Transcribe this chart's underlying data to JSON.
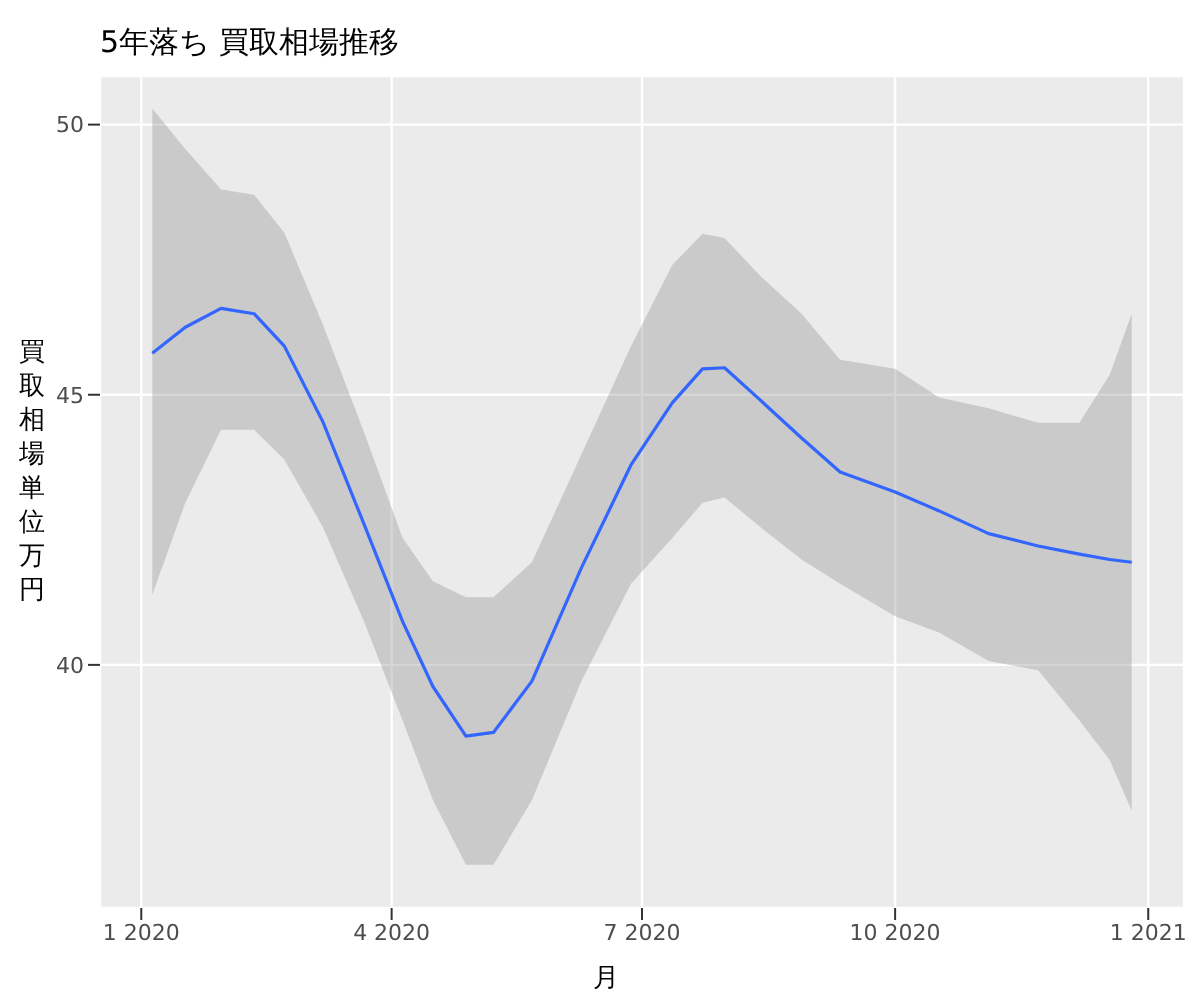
{
  "chart_data": {
    "type": "line",
    "title": "5年落ち 買取相場推移",
    "xlabel": "月",
    "ylabel": "買取相場単位万円",
    "x": [
      "2020-01-05",
      "2020-01-17",
      "2020-01-30",
      "2020-02-11",
      "2020-02-22",
      "2020-03-07",
      "2020-03-22",
      "2020-04-05",
      "2020-04-16",
      "2020-04-28",
      "2020-05-08",
      "2020-05-22",
      "2020-06-09",
      "2020-06-27",
      "2020-07-12",
      "2020-07-23",
      "2020-07-31",
      "2020-08-13",
      "2020-08-28",
      "2020-09-11",
      "2020-10-01",
      "2020-10-17",
      "2020-11-04",
      "2020-11-22",
      "2020-12-07",
      "2020-12-18",
      "2020-12-26"
    ],
    "series": [
      {
        "color": "#3366ff",
        "values": [
          45.77,
          46.25,
          46.6,
          46.5,
          45.9,
          44.5,
          42.6,
          40.8,
          39.6,
          38.68,
          38.75,
          39.7,
          41.8,
          43.7,
          44.85,
          45.48,
          45.5,
          44.9,
          44.2,
          43.57,
          43.2,
          42.85,
          42.43,
          42.2,
          42.05,
          41.95,
          41.9
        ],
        "lower": [
          41.3,
          43.0,
          44.35,
          44.35,
          43.8,
          42.55,
          40.8,
          38.97,
          37.5,
          36.3,
          36.3,
          37.5,
          39.7,
          41.5,
          42.35,
          43.0,
          43.1,
          42.55,
          41.95,
          41.5,
          40.9,
          40.6,
          40.07,
          39.9,
          38.97,
          38.24,
          37.3
        ],
        "upper": [
          50.3,
          49.55,
          48.8,
          48.7,
          48.0,
          46.3,
          44.3,
          42.35,
          41.55,
          41.25,
          41.25,
          41.9,
          43.9,
          45.9,
          47.4,
          47.98,
          47.9,
          47.2,
          46.5,
          45.65,
          45.48,
          44.95,
          44.75,
          44.48,
          44.48,
          45.37,
          46.5
        ]
      }
    ],
    "xlim": [
      "2019-12-17",
      "2021-01-14"
    ],
    "xticks": [
      {
        "value": "2020-01-01",
        "label": "1 2020"
      },
      {
        "value": "2020-04-01",
        "label": "4 2020"
      },
      {
        "value": "2020-07-01",
        "label": "7 2020"
      },
      {
        "value": "2020-10-01",
        "label": "10 2020"
      },
      {
        "value": "2021-01-01",
        "label": "1 2021"
      }
    ],
    "ylim": [
      35.5,
      50.9
    ],
    "yticks": [
      40,
      45,
      50
    ],
    "grid": true,
    "legend": false,
    "marker": "none",
    "line_style": "solid"
  }
}
